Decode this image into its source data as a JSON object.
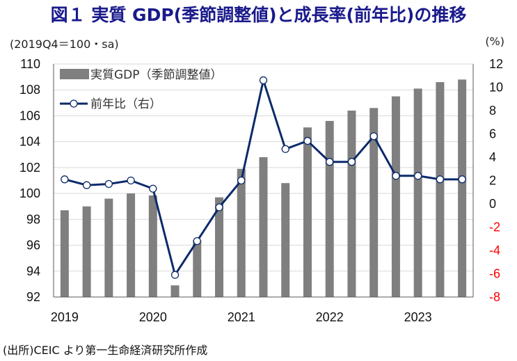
{
  "chart_data": {
    "type": "bar+line",
    "title": "図１ 実質 GDP(季節調整値)と成長率(前年比)の推移",
    "left_unit": "(2019Q4＝100・sa)",
    "right_unit": "(%)",
    "source": "(出所)CEIC より第一生命経済研究所作成",
    "categories": [
      "2019Q1",
      "2019Q2",
      "2019Q3",
      "2019Q4",
      "2020Q1",
      "2020Q2",
      "2020Q3",
      "2020Q4",
      "2021Q1",
      "2021Q2",
      "2021Q3",
      "2021Q4",
      "2022Q1",
      "2022Q2",
      "2022Q3",
      "2022Q4",
      "2023Q1",
      "2023Q2",
      "2023Q3"
    ],
    "x_tick_labels": [
      {
        "index": 0,
        "label": "2019"
      },
      {
        "index": 4,
        "label": "2020"
      },
      {
        "index": 8,
        "label": "2021"
      },
      {
        "index": 12,
        "label": "2022"
      },
      {
        "index": 16,
        "label": "2023"
      }
    ],
    "left_axis": {
      "ylim": [
        92,
        110
      ],
      "ticks": [
        "92",
        "94",
        "96",
        "98",
        "100",
        "102",
        "104",
        "106",
        "108",
        "110"
      ]
    },
    "right_axis": {
      "ylim": [
        -8,
        12
      ],
      "ticks": [
        "-8",
        "-6",
        "-4",
        "-2",
        "0",
        "2",
        "4",
        "6",
        "8",
        "10",
        "12"
      ],
      "negative_color": "#ff0000"
    },
    "series": [
      {
        "name": "実質GDP（季節調整値）",
        "type": "bar",
        "axis": "left",
        "color": "#7f7f7f",
        "values": [
          98.7,
          99.0,
          99.6,
          100.0,
          99.85,
          92.9,
          96.4,
          99.7,
          101.9,
          102.8,
          100.8,
          105.1,
          105.6,
          106.4,
          106.6,
          107.5,
          108.1,
          108.6,
          108.8
        ]
      },
      {
        "name": "前年比（右）",
        "type": "line",
        "axis": "right",
        "color": "#0c2a6b",
        "values": [
          2.1,
          1.6,
          1.7,
          2.0,
          1.3,
          -6.1,
          -3.2,
          -0.3,
          2.0,
          10.6,
          4.7,
          5.4,
          3.6,
          3.6,
          5.8,
          2.4,
          2.4,
          2.1,
          2.1
        ]
      }
    ],
    "legend": "top-left",
    "grid": true
  }
}
